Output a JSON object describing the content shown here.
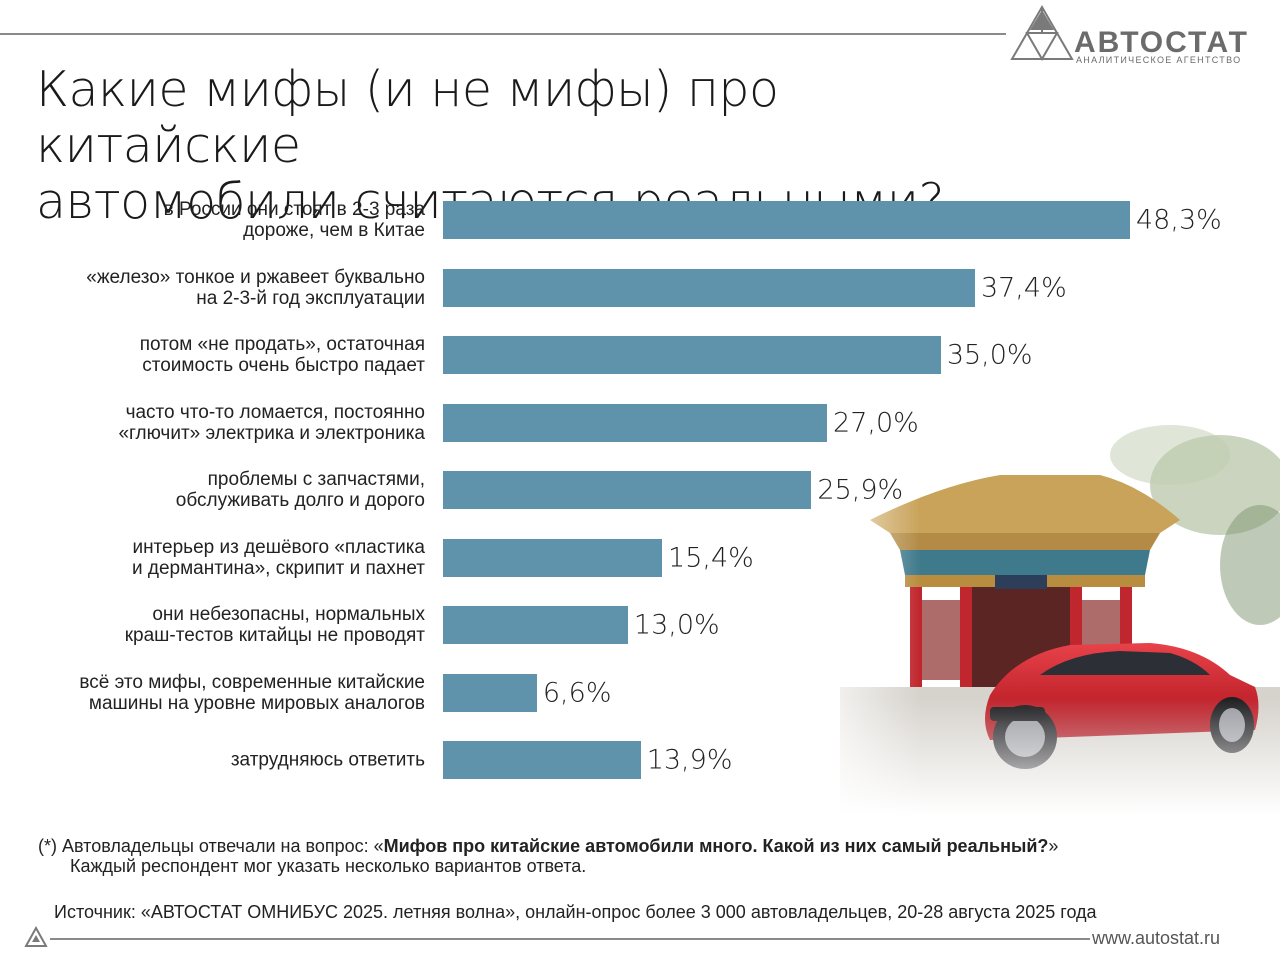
{
  "header": {
    "logo_name": "АВТОСТАТ",
    "logo_subtitle": "АНАЛИТИЧЕСКОЕ АГЕНТСТВО",
    "title_line1": "Какие мифы (и не мифы) про китайские",
    "title_line2": "автомобили считаются реальными?"
  },
  "chart_data": {
    "type": "bar",
    "orientation": "horizontal",
    "bar_color": "#5f93ab",
    "categories": [
      [
        "в России они стоят в 2-3 раза",
        "дороже, чем в Китае"
      ],
      [
        "«железо» тонкое и ржавеет буквально",
        "на 2-3-й год эксплуатации"
      ],
      [
        "потом «не продать», остаточная",
        "стоимость очень быстро падает"
      ],
      [
        "часто что-то ломается, постоянно",
        "«глючит» электрика и электроника"
      ],
      [
        "проблемы с запчастями,",
        "обслуживать долго и дорого"
      ],
      [
        "интерьер из дешёвого «пластика",
        "и дермантина», скрипит и пахнет"
      ],
      [
        "они небезопасны, нормальных",
        "краш-тестов китайцы не проводят"
      ],
      [
        "всё это мифы, современные китайские",
        "машины на уровне мировых аналогов"
      ],
      [
        "затрудняюсь ответить"
      ]
    ],
    "values": [
      48.3,
      37.4,
      35.0,
      27.0,
      25.9,
      15.4,
      13.0,
      6.6,
      13.9
    ],
    "value_labels": [
      "48,3%",
      "37,4%",
      "35,0%",
      "27,0%",
      "25,9%",
      "15,4%",
      "13,0%",
      "6,6%",
      "13,9%"
    ],
    "unit": "%"
  },
  "footnote": {
    "prefix": "(*) Автовладельцы отвечали на вопрос: «",
    "question": "Мифов про китайские автомобили много. Какой из них самый реальный?",
    "suffix": "»",
    "line2": "Каждый респондент мог указать несколько вариантов ответа."
  },
  "source": "Источник: «АВТОСТАТ ОМНИБУС 2025. летняя волна», онлайн-опрос более 3 000 автовладельцев, 20-28 августа 2025 года",
  "website": "www.autostat.ru"
}
